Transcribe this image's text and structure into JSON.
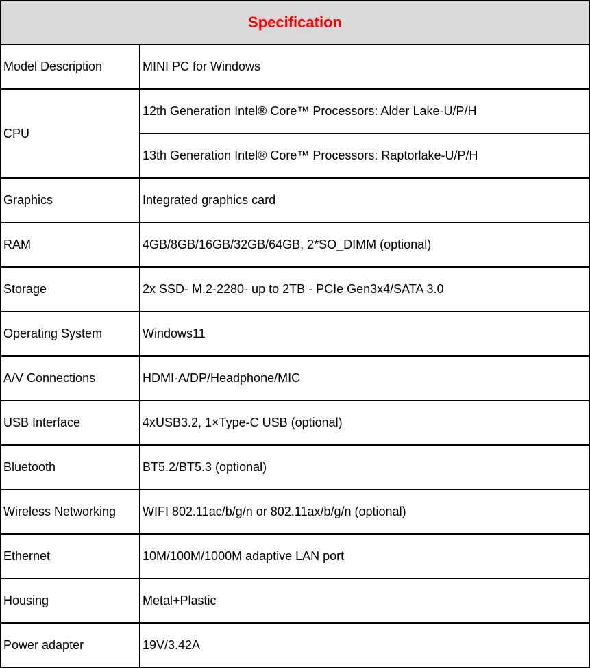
{
  "title": "Specification",
  "colors": {
    "title": "#ff0000",
    "header_bg": "#d9d9d9"
  },
  "rows": [
    {
      "label": "Model Description",
      "values": [
        "MINI PC for Windows"
      ]
    },
    {
      "label": "CPU",
      "values": [
        "12th Generation Intel® Core™ Processors: Alder Lake-U/P/H",
        "13th Generation Intel® Core™ Processors: Raptorlake-U/P/H"
      ]
    },
    {
      "label": "Graphics",
      "values": [
        "Integrated graphics card"
      ]
    },
    {
      "label": "RAM",
      "values": [
        "4GB/8GB/16GB/32GB/64GB, 2*SO_DIMM (optional)"
      ]
    },
    {
      "label": "Storage",
      "values": [
        "2x SSD- M.2-2280- up to 2TB - PCIe Gen3x4/SATA 3.0"
      ]
    },
    {
      "label": "Operating System",
      "values": [
        "Windows11"
      ]
    },
    {
      "label": "A/V Connections",
      "values": [
        "HDMI-A/DP/Headphone/MIC"
      ]
    },
    {
      "label": "USB Interface",
      "values": [
        "4xUSB3.2, 1×Type-C USB (optional)"
      ]
    },
    {
      "label": "Bluetooth",
      "values": [
        "BT5.2/BT5.3 (optional)"
      ]
    },
    {
      "label": "Wireless Networking",
      "values": [
        "WIFI 802.11ac/b/g/n or 802.11ax/b/g/n (optional)"
      ]
    },
    {
      "label": "Ethernet",
      "values": [
        "10M/100M/1000M adaptive LAN port"
      ]
    },
    {
      "label": "Housing",
      "values": [
        "Metal+Plastic"
      ]
    },
    {
      "label": "Power adapter",
      "values": [
        "19V/3.42A"
      ]
    }
  ]
}
